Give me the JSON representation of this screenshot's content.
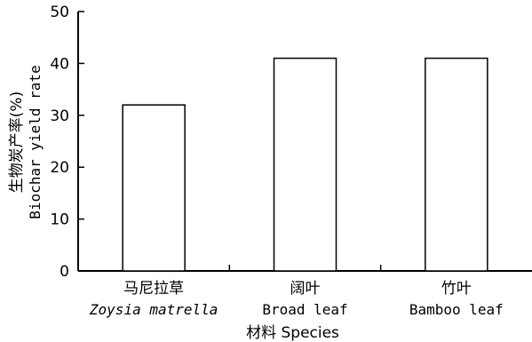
{
  "chart_data": {
    "type": "bar",
    "categories": [
      {
        "cn": "马尼拉草",
        "en": "Zoysia matrella",
        "en_italic": true
      },
      {
        "cn": "阔叶",
        "en": "Broad leaf",
        "en_italic": false
      },
      {
        "cn": "竹叶",
        "en": "Bamboo leaf",
        "en_italic": false
      }
    ],
    "values": [
      32,
      41,
      41
    ],
    "ylim": [
      0,
      50
    ],
    "yticks": [
      "0",
      "10",
      "20",
      "30",
      "40",
      "50"
    ],
    "ylabel_cn": "生物炭产率(%)",
    "ylabel_en": "Biochar yield rate",
    "xlabel": "材料 Species",
    "bar_fill": "#ffffff",
    "bar_stroke": "#000000",
    "grid": false,
    "legend": "none"
  }
}
